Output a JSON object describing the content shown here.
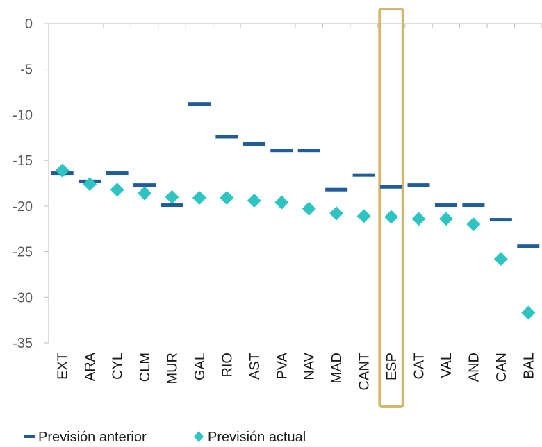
{
  "chart_data": {
    "type": "scatter",
    "categories": [
      "EXT",
      "ARA",
      "CYL",
      "CLM",
      "MUR",
      "GAL",
      "RIO",
      "AST",
      "PVA",
      "NAV",
      "MAD",
      "CANT",
      "ESP",
      "CAT",
      "VAL",
      "AND",
      "CAN",
      "BAL"
    ],
    "series": [
      {
        "name": "Previsión anterior",
        "marker": "dash",
        "color": "#1f5c99",
        "values": [
          -16.4,
          -17.3,
          -16.4,
          -17.7,
          -19.9,
          -8.8,
          -12.4,
          -13.2,
          -13.9,
          -13.9,
          -18.2,
          -16.6,
          -17.9,
          -17.7,
          -19.9,
          -19.9,
          -21.5,
          -24.4
        ]
      },
      {
        "name": "Previsión actual",
        "marker": "diamond",
        "color": "#2ec4c4",
        "values": [
          -16.1,
          -17.6,
          -18.2,
          -18.6,
          -19.0,
          -19.1,
          -19.1,
          -19.4,
          -19.6,
          -20.3,
          -20.8,
          -21.1,
          -21.2,
          -21.4,
          -21.4,
          -22.0,
          -25.8,
          -31.7
        ]
      }
    ],
    "yticks": [
      0,
      -5,
      -10,
      -15,
      -20,
      -25,
      -30,
      -35
    ],
    "ylim": [
      -35,
      0
    ],
    "highlight_category": "ESP",
    "highlight_color": "#d4b76a",
    "axis_color": "#bfbfbf",
    "grid": false,
    "legend_position": "bottom-left"
  }
}
